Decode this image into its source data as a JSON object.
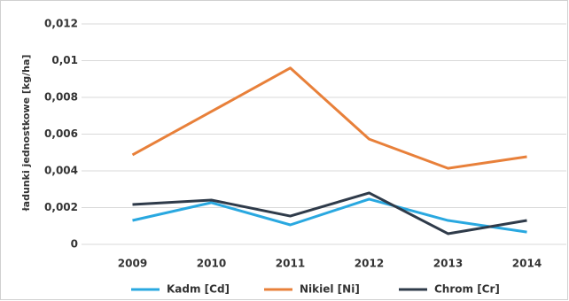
{
  "chart_data": {
    "type": "line",
    "ylabel": "ładunki jednostkowe [kg/ha]",
    "categories": [
      "2009",
      "2010",
      "2011",
      "2012",
      "2013",
      "2014"
    ],
    "series": [
      {
        "name": "Kadm [Cd]",
        "color": "#29a8e0",
        "values": [
          0.0013,
          0.00227,
          0.00106,
          0.00246,
          0.0013,
          0.00067
        ]
      },
      {
        "name": "Nikiel [Ni]",
        "color": "#e8803a",
        "values": [
          0.00487,
          0.00723,
          0.0096,
          0.00573,
          0.00414,
          0.00477
        ]
      },
      {
        "name": "Chrom [Cr]",
        "color": "#2f3b4a",
        "values": [
          0.00217,
          0.00241,
          0.00154,
          0.0028,
          0.00058,
          0.0013
        ]
      }
    ],
    "ylim": [
      0,
      0.012
    ],
    "yticks": [
      0,
      {
        "value": 0.002,
        "label": "0,002"
      },
      {
        "value": 0.004,
        "label": "0,004"
      },
      {
        "value": 0.006,
        "label": "0,006"
      },
      {
        "value": 0.008,
        "label": "0,008"
      },
      {
        "value": 0.01,
        "label": "0,01"
      },
      {
        "value": 0.012,
        "label": "0,012"
      }
    ],
    "grid": true,
    "legend": "bottom"
  }
}
